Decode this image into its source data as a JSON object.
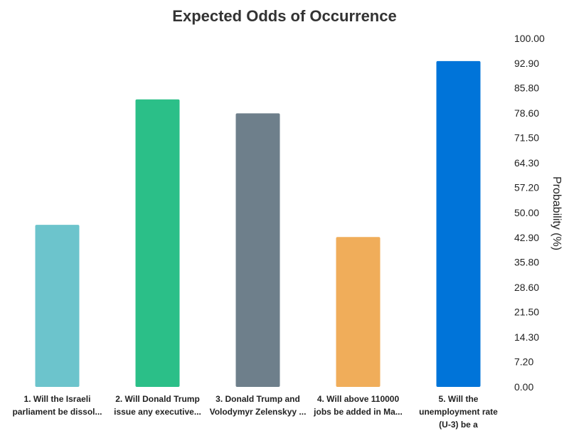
{
  "chart_data": {
    "type": "bar",
    "title": "Expected Odds of Occurrence",
    "ylabel": "Probability (%)",
    "xlabel": "",
    "ylim": [
      0,
      100
    ],
    "y_ticks": [
      "0.00",
      "7.20",
      "14.30",
      "21.50",
      "28.60",
      "35.80",
      "42.90",
      "50.00",
      "57.20",
      "64.30",
      "71.50",
      "78.60",
      "85.80",
      "92.90",
      "100.00"
    ],
    "y_axis_position": "right",
    "grid": false,
    "categories": [
      [
        "1. Will the Israeli",
        "parliament be dissol..."
      ],
      [
        "2. Will Donald Trump",
        "issue any executive..."
      ],
      [
        "3. Donald Trump and",
        "Volodymyr Zelenskyy ..."
      ],
      [
        "4. Will above 110000",
        "jobs be added in Ma..."
      ],
      [
        "5. Will the",
        "unemployment rate",
        "(U-3) be a"
      ]
    ],
    "values": [
      46.5,
      82.5,
      78.5,
      43,
      93.5
    ],
    "colors": [
      "#6cc4cc",
      "#2bbf88",
      "#6e7f8b",
      "#f0ad5a",
      "#0074d9"
    ]
  }
}
